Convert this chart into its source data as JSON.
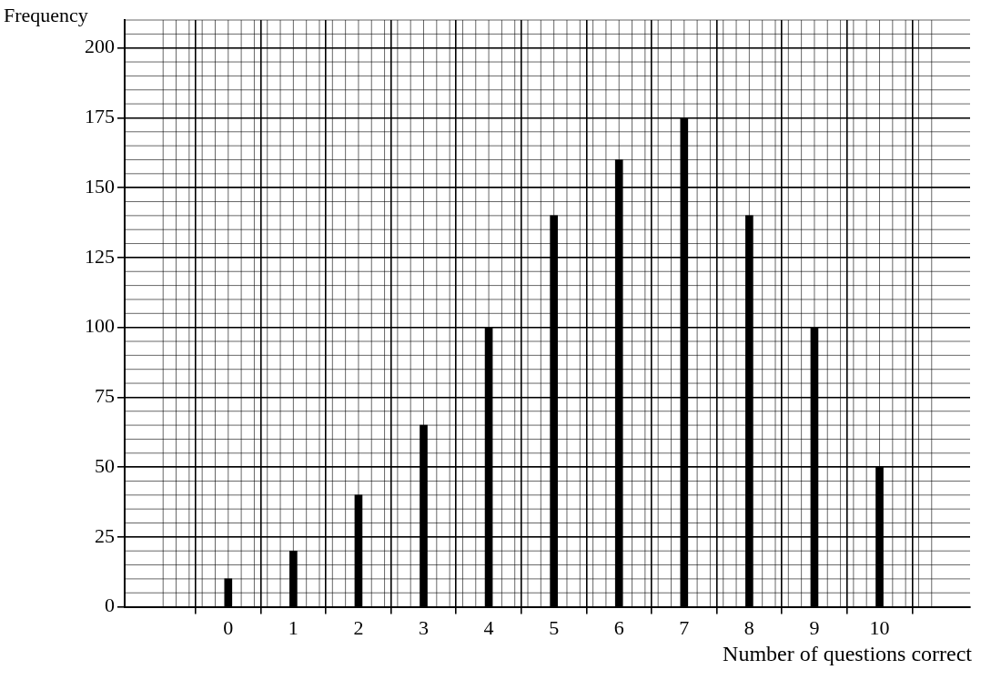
{
  "chart_data": {
    "type": "bar",
    "xlabel": "Number of questions correct",
    "ylabel": "Frequency",
    "x": [
      0,
      1,
      2,
      3,
      4,
      5,
      6,
      7,
      8,
      9,
      10
    ],
    "series": [
      {
        "color": "#000000",
        "values": [
          10,
          20,
          40,
          65,
          100,
          140,
          160,
          175,
          140,
          100,
          50
        ]
      }
    ],
    "xlim": [
      -1,
      10.8
    ],
    "xticks": [
      0,
      1,
      2,
      3,
      4,
      5,
      6,
      7,
      8,
      9,
      10
    ],
    "ylim": [
      0,
      210
    ],
    "yticks": [
      0,
      25,
      50,
      75,
      100,
      125,
      150,
      175,
      200
    ],
    "grid": true,
    "legend": false
  }
}
